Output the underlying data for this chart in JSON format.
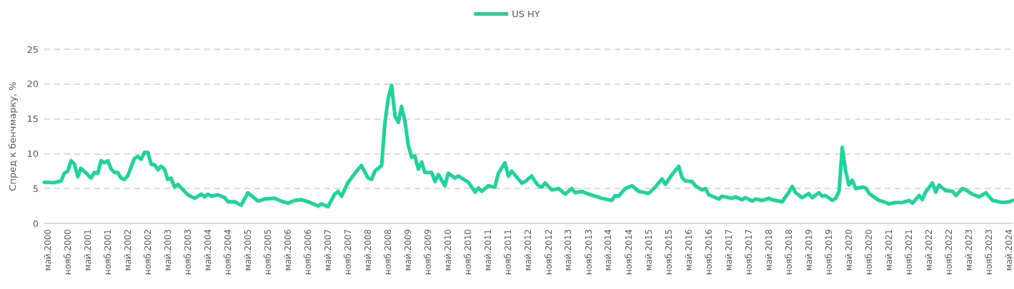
{
  "chart_data": {
    "type": "line",
    "ylabel": "Спред к бенчмарку, %",
    "legend": "top",
    "grid": "y",
    "marker": "none",
    "line_style": "solid",
    "xlim": [
      "2000-04",
      "2024-06"
    ],
    "ylim": [
      0,
      25
    ],
    "yticks": [
      0,
      5,
      10,
      15,
      20,
      25
    ],
    "xticks": [
      {
        "value": "2000-05",
        "label": "май.2000"
      },
      {
        "value": "2000-11",
        "label": "нояб.2000"
      },
      {
        "value": "2001-05",
        "label": "май.2001"
      },
      {
        "value": "2001-11",
        "label": "нояб.2001"
      },
      {
        "value": "2002-05",
        "label": "май.2002"
      },
      {
        "value": "2002-11",
        "label": "нояб.2002"
      },
      {
        "value": "2003-05",
        "label": "май.2003"
      },
      {
        "value": "2003-11",
        "label": "нояб.2003"
      },
      {
        "value": "2004-05",
        "label": "май.2004"
      },
      {
        "value": "2004-11",
        "label": "нояб.2004"
      },
      {
        "value": "2005-05",
        "label": "май.2005"
      },
      {
        "value": "2005-11",
        "label": "нояб.2005"
      },
      {
        "value": "2006-05",
        "label": "май.2006"
      },
      {
        "value": "2006-11",
        "label": "нояб.2006"
      },
      {
        "value": "2007-05",
        "label": "май.2007"
      },
      {
        "value": "2007-11",
        "label": "нояб.2007"
      },
      {
        "value": "2008-05",
        "label": "май.2008"
      },
      {
        "value": "2008-11",
        "label": "нояб.2008"
      },
      {
        "value": "2009-05",
        "label": "май.2009"
      },
      {
        "value": "2009-11",
        "label": "нояб.2009"
      },
      {
        "value": "2010-05",
        "label": "май.2010"
      },
      {
        "value": "2010-11",
        "label": "нояб.2010"
      },
      {
        "value": "2011-05",
        "label": "май.2011"
      },
      {
        "value": "2011-11",
        "label": "нояб.2011"
      },
      {
        "value": "2012-05",
        "label": "май.2012"
      },
      {
        "value": "2012-11",
        "label": "нояб.2012"
      },
      {
        "value": "2013-05",
        "label": "май.2013"
      },
      {
        "value": "2013-11",
        "label": "нояб.2013"
      },
      {
        "value": "2014-05",
        "label": "май.2014"
      },
      {
        "value": "2014-11",
        "label": "нояб.2014"
      },
      {
        "value": "2015-05",
        "label": "май.2015"
      },
      {
        "value": "2015-11",
        "label": "нояб.2015"
      },
      {
        "value": "2016-05",
        "label": "май.2016"
      },
      {
        "value": "2016-11",
        "label": "нояб.2016"
      },
      {
        "value": "2017-05",
        "label": "май.2017"
      },
      {
        "value": "2017-11",
        "label": "нояб.2017"
      },
      {
        "value": "2018-05",
        "label": "май.2018"
      },
      {
        "value": "2018-11",
        "label": "нояб.2018"
      },
      {
        "value": "2019-05",
        "label": "май.2019"
      },
      {
        "value": "2019-11",
        "label": "нояб.2019"
      },
      {
        "value": "2020-05",
        "label": "май.2020"
      },
      {
        "value": "2020-11",
        "label": "нояб.2020"
      },
      {
        "value": "2021-05",
        "label": "май.2021"
      },
      {
        "value": "2021-11",
        "label": "нояб.2021"
      },
      {
        "value": "2022-05",
        "label": "май.2022"
      },
      {
        "value": "2022-11",
        "label": "нояб.2022"
      },
      {
        "value": "2023-05",
        "label": "май.2023"
      },
      {
        "value": "2023-11",
        "label": "нояб.2023"
      },
      {
        "value": "2024-05",
        "label": "май.2024"
      }
    ],
    "series": [
      {
        "name": "US HY",
        "color": "#1ed49c",
        "x": [
          "2000-04",
          "2000-05",
          "2000-07",
          "2000-09",
          "2000-10",
          "2000-11",
          "2000-12",
          "2001-01",
          "2001-02",
          "2001-03",
          "2001-05",
          "2001-06",
          "2001-07",
          "2001-08",
          "2001-09",
          "2001-10",
          "2001-11",
          "2001-12",
          "2002-01",
          "2002-02",
          "2002-03",
          "2002-04",
          "2002-05",
          "2002-07",
          "2002-08",
          "2002-09",
          "2002-10",
          "2002-11",
          "2002-12",
          "2003-01",
          "2003-02",
          "2003-03",
          "2003-04",
          "2003-05",
          "2003-06",
          "2003-07",
          "2003-08",
          "2003-09",
          "2003-10",
          "2003-11",
          "2004-01",
          "2004-03",
          "2004-04",
          "2004-05",
          "2004-06",
          "2004-08",
          "2004-10",
          "2004-11",
          "2005-01",
          "2005-03",
          "2005-05",
          "2005-08",
          "2005-10",
          "2006-01",
          "2006-03",
          "2006-05",
          "2006-07",
          "2006-09",
          "2006-11",
          "2007-02",
          "2007-03",
          "2007-05",
          "2007-07",
          "2007-08",
          "2007-09",
          "2007-11",
          "2008-01",
          "2008-03",
          "2008-05",
          "2008-06",
          "2008-07",
          "2008-09",
          "2008-10",
          "2008-11",
          "2008-12",
          "2009-01",
          "2009-02",
          "2009-03",
          "2009-04",
          "2009-05",
          "2009-06",
          "2009-07",
          "2009-08",
          "2009-09",
          "2009-10",
          "2009-12",
          "2010-01",
          "2010-02",
          "2010-04",
          "2010-05",
          "2010-07",
          "2010-08",
          "2010-11",
          "2011-01",
          "2011-02",
          "2011-03",
          "2011-05",
          "2011-07",
          "2011-08",
          "2011-10",
          "2011-11",
          "2011-12",
          "2012-03",
          "2012-04",
          "2012-06",
          "2012-07",
          "2012-08",
          "2012-09",
          "2012-10",
          "2012-12",
          "2013-02",
          "2013-04",
          "2013-06",
          "2013-07",
          "2013-09",
          "2013-11",
          "2014-01",
          "2014-03",
          "2014-06",
          "2014-07",
          "2014-08",
          "2014-10",
          "2014-12",
          "2015-01",
          "2015-02",
          "2015-05",
          "2015-07",
          "2015-09",
          "2015-10",
          "2015-12",
          "2016-02",
          "2016-03",
          "2016-04",
          "2016-06",
          "2016-07",
          "2016-09",
          "2016-10",
          "2016-11",
          "2017-02",
          "2017-03",
          "2017-06",
          "2017-07",
          "2017-09",
          "2017-10",
          "2017-12",
          "2018-01",
          "2018-03",
          "2018-05",
          "2018-06",
          "2018-09",
          "2018-11",
          "2018-12",
          "2019-01",
          "2019-03",
          "2019-05",
          "2019-06",
          "2019-08",
          "2019-09",
          "2019-10",
          "2019-12",
          "2020-01",
          "2020-02",
          "2020-03",
          "2020-04",
          "2020-05",
          "2020-06",
          "2020-07",
          "2020-09",
          "2020-10",
          "2020-11",
          "2021-01",
          "2021-02",
          "2021-04",
          "2021-05",
          "2021-07",
          "2021-09",
          "2021-11",
          "2021-12",
          "2022-02",
          "2022-03",
          "2022-04",
          "2022-06",
          "2022-07",
          "2022-08",
          "2022-10",
          "2022-12",
          "2023-01",
          "2023-03",
          "2023-04",
          "2023-06",
          "2023-08",
          "2023-10",
          "2023-12",
          "2024-03",
          "2024-05",
          "2024-06"
        ],
        "values": [
          5.9,
          5.9,
          5.85,
          6.1,
          7.2,
          7.5,
          9.0,
          8.5,
          6.7,
          7.9,
          7.0,
          6.5,
          7.3,
          7.2,
          9.0,
          8.7,
          9.0,
          7.8,
          7.3,
          7.3,
          6.5,
          6.3,
          6.8,
          9.3,
          9.6,
          9.2,
          10.2,
          10.2,
          8.5,
          8.4,
          7.7,
          8.2,
          7.8,
          6.3,
          6.5,
          5.2,
          5.6,
          5.1,
          4.6,
          4.1,
          3.6,
          4.2,
          3.8,
          4.2,
          3.9,
          4.1,
          3.7,
          3.1,
          3.1,
          2.6,
          4.4,
          3.2,
          3.5,
          3.6,
          3.2,
          2.9,
          3.3,
          3.4,
          3.1,
          2.5,
          2.8,
          2.4,
          4.2,
          4.6,
          3.9,
          5.9,
          7.2,
          8.3,
          6.5,
          6.3,
          7.5,
          8.3,
          14.5,
          18.0,
          19.8,
          15.4,
          14.5,
          16.8,
          14.7,
          11.3,
          9.5,
          9.7,
          7.8,
          8.8,
          7.3,
          7.3,
          6.0,
          7.0,
          5.4,
          7.2,
          6.5,
          6.8,
          5.9,
          4.5,
          5.1,
          4.6,
          5.4,
          5.2,
          7.2,
          8.7,
          6.8,
          7.5,
          5.8,
          6.0,
          6.8,
          6.0,
          5.4,
          5.2,
          5.8,
          4.8,
          5.0,
          4.2,
          5.0,
          4.4,
          4.6,
          4.2,
          3.9,
          3.6,
          3.3,
          4.0,
          3.9,
          5.0,
          5.4,
          5.0,
          4.6,
          4.3,
          5.2,
          6.4,
          5.6,
          7.0,
          8.2,
          6.6,
          6.1,
          6.0,
          5.4,
          4.8,
          5.0,
          4.1,
          3.5,
          3.9,
          3.6,
          3.8,
          3.4,
          3.7,
          3.2,
          3.5,
          3.3,
          3.6,
          3.4,
          3.1,
          4.5,
          5.3,
          4.4,
          3.7,
          4.3,
          3.7,
          4.4,
          3.9,
          4.0,
          3.3,
          3.6,
          4.6,
          10.9,
          7.5,
          5.5,
          6.2,
          5.0,
          5.2,
          5.1,
          4.3,
          3.6,
          3.3,
          3.0,
          2.8,
          3.0,
          3.0,
          3.3,
          2.9,
          4.0,
          3.4,
          4.5,
          5.8,
          4.5,
          5.5,
          4.7,
          4.6,
          4.0,
          5.0,
          4.8,
          4.2,
          3.8,
          4.4,
          3.3,
          3.0,
          3.1,
          3.3
        ]
      }
    ]
  }
}
